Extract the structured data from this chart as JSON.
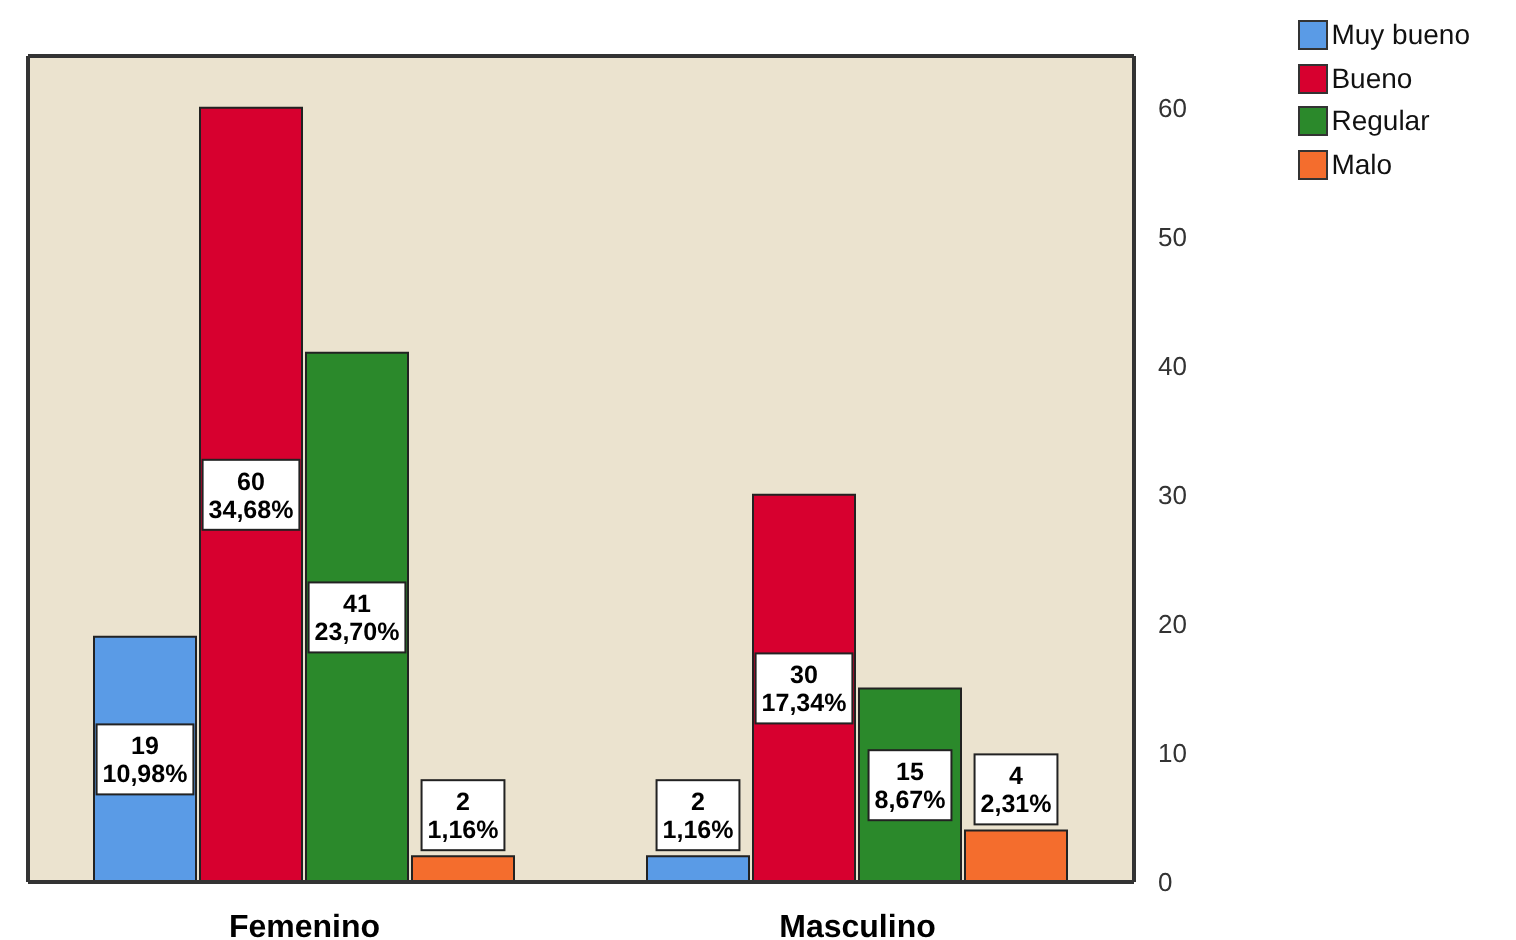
{
  "chart_data": {
    "type": "bar",
    "categories": [
      "Femenino",
      "Masculino"
    ],
    "series": [
      {
        "name": "Muy bueno",
        "color": "#5a9be6",
        "values": [
          19,
          2
        ],
        "value_labels": [
          "19\n10,98%",
          "2\n1,16%"
        ]
      },
      {
        "name": "Bueno",
        "color": "#d7002f",
        "values": [
          60,
          30
        ],
        "value_labels": [
          "60\n34,68%",
          "30\n17,34%"
        ]
      },
      {
        "name": "Regular",
        "color": "#2b892b",
        "values": [
          41,
          15
        ],
        "value_labels": [
          "41\n23,70%",
          "15\n8,67%"
        ]
      },
      {
        "name": "Malo",
        "color": "#f46d2d",
        "values": [
          2,
          4
        ],
        "value_labels": [
          "2\n1,16%",
          "4\n2,31%"
        ]
      }
    ],
    "ylim": [
      0,
      64
    ],
    "yticks": [
      0,
      10,
      20,
      30,
      40,
      50,
      60
    ],
    "legend": "top right"
  }
}
